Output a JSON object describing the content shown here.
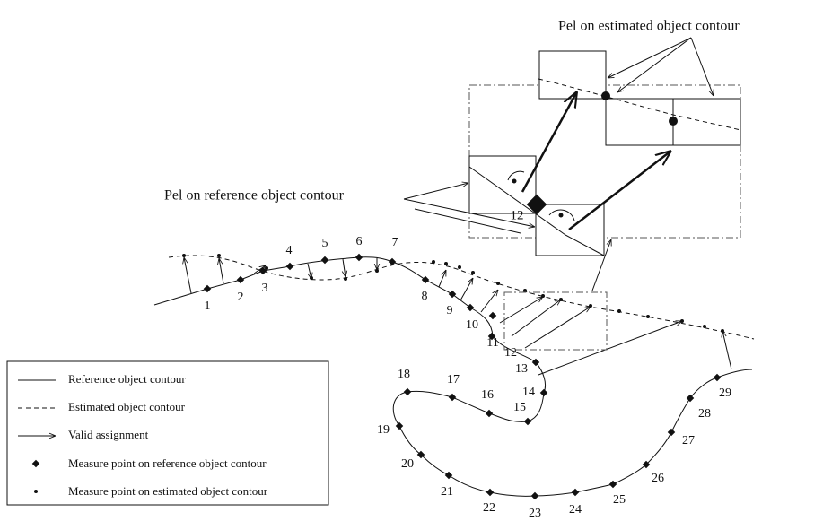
{
  "annotations": {
    "estimated_pel": "Pel on estimated object contour",
    "reference_pel": "Pel on reference object contour",
    "inset_point": "12"
  },
  "point_labels": [
    "1",
    "2",
    "3",
    "4",
    "5",
    "6",
    "7",
    "8",
    "9",
    "10",
    "11",
    "12",
    "13",
    "14",
    "15",
    "16",
    "17",
    "18",
    "19",
    "20",
    "21",
    "22",
    "23",
    "24",
    "25",
    "26",
    "27",
    "28",
    "29"
  ],
  "legend": [
    "Reference object contour",
    "Estimated object contour",
    "Valid assignment",
    "Measure point on reference object contour",
    "Measure point on estimated object contour"
  ]
}
